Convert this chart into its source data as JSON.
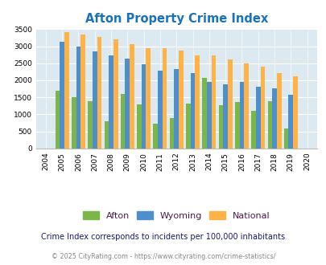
{
  "title": "Afton Property Crime Index",
  "years": [
    2004,
    2005,
    2006,
    2007,
    2008,
    2009,
    2010,
    2011,
    2012,
    2013,
    2014,
    2015,
    2016,
    2017,
    2018,
    2019,
    2020
  ],
  "afton": [
    0,
    1700,
    1500,
    1390,
    800,
    1600,
    1300,
    730,
    880,
    1310,
    2060,
    1270,
    1360,
    1100,
    1390,
    590,
    0
  ],
  "wyoming": [
    0,
    3130,
    2980,
    2850,
    2730,
    2630,
    2480,
    2280,
    2330,
    2200,
    1960,
    1890,
    1960,
    1820,
    1770,
    1570,
    0
  ],
  "national": [
    0,
    3420,
    3340,
    3270,
    3200,
    3050,
    2950,
    2930,
    2870,
    2740,
    2720,
    2600,
    2490,
    2390,
    2210,
    2110,
    0
  ],
  "afton_color": "#7ab648",
  "wyoming_color": "#4d8fcc",
  "national_color": "#ffb347",
  "bg_color": "#dce9f0",
  "ylim": [
    0,
    3500
  ],
  "yticks": [
    0,
    500,
    1000,
    1500,
    2000,
    2500,
    3000,
    3500
  ],
  "note_text": "Crime Index corresponds to incidents per 100,000 inhabitants",
  "footer": "© 2025 CityRating.com - https://www.cityrating.com/crime-statistics/",
  "title_color": "#1a72bb",
  "note_color": "#1a1a6e",
  "footer_color": "#888888",
  "legend_text_color": "#4a1a4a"
}
